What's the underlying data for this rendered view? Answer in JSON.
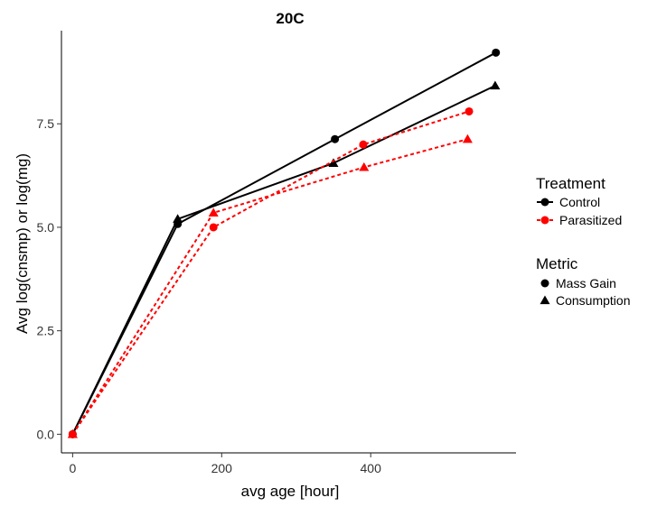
{
  "chart_data": {
    "type": "line",
    "title": "20C",
    "xlabel": "avg age [hour]",
    "ylabel": "Avg log(cnsmp) or log(mg)",
    "xlim": [
      -15,
      595
    ],
    "ylim": [
      -0.45,
      9.75
    ],
    "xticks": [
      0,
      200,
      400
    ],
    "yticks": [
      0.0,
      2.5,
      5.0,
      7.5
    ],
    "ytick_labels": [
      "0.0",
      "2.5",
      "5.0",
      "7.5"
    ],
    "grid": false,
    "legend_placement": "right",
    "legend": {
      "treatment_title": "Treatment",
      "treatment_items": [
        {
          "label": "Control",
          "color": "#000000",
          "dash": "solid"
        },
        {
          "label": "Parasitized",
          "color": "#ff0000",
          "dash": "dashed"
        }
      ],
      "metric_title": "Metric",
      "metric_items": [
        {
          "label": "Mass Gain",
          "shape": "circle"
        },
        {
          "label": "Consumption",
          "shape": "triangle"
        }
      ]
    },
    "series": [
      {
        "treatment": "Control",
        "metric": "Mass Gain",
        "color": "#000000",
        "dash": "solid",
        "shape": "circle",
        "x": [
          0,
          141,
          352,
          568
        ],
        "y": [
          0.0,
          5.08,
          7.13,
          9.22
        ]
      },
      {
        "treatment": "Control",
        "metric": "Consumption",
        "color": "#000000",
        "dash": "solid",
        "shape": "triangle",
        "x": [
          0,
          141,
          350,
          567
        ],
        "y": [
          0.0,
          5.2,
          6.55,
          8.42
        ]
      },
      {
        "treatment": "Parasitized",
        "metric": "Mass Gain",
        "color": "#ff0000",
        "dash": "dashed",
        "shape": "circle",
        "x": [
          0,
          189,
          390,
          532
        ],
        "y": [
          0.0,
          5.0,
          7.0,
          7.8
        ]
      },
      {
        "treatment": "Parasitized",
        "metric": "Consumption",
        "color": "#ff0000",
        "dash": "dashed",
        "shape": "triangle",
        "x": [
          0,
          189,
          391,
          530
        ],
        "y": [
          0.0,
          5.35,
          6.45,
          7.13
        ]
      }
    ]
  }
}
